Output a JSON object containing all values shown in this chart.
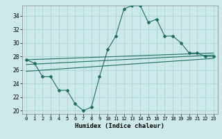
{
  "x": [
    0,
    1,
    2,
    3,
    4,
    5,
    6,
    7,
    8,
    9,
    10,
    11,
    12,
    13,
    14,
    15,
    16,
    17,
    18,
    19,
    20,
    21,
    22,
    23
  ],
  "line1": [
    27.5,
    27.0,
    25.0,
    25.0,
    23.0,
    23.0,
    21.0,
    20.0,
    20.5,
    25.0,
    29.0,
    31.0,
    35.0,
    35.5,
    35.5,
    33.0,
    33.5,
    31.0,
    31.0,
    30.0,
    28.5,
    28.5,
    28.0,
    28.0
  ],
  "line2": [
    27.5,
    28.5
  ],
  "line3": [
    26.8,
    28.2
  ],
  "line4": [
    25.8,
    27.7
  ],
  "color": "#1e6e62",
  "bg_color": "#cce8e8",
  "grid_color": "#aad4d4",
  "xlabel": "Humidex (Indice chaleur)",
  "xlim": [
    -0.5,
    23.5
  ],
  "ylim": [
    19.5,
    35.5
  ],
  "yticks": [
    20,
    22,
    24,
    26,
    28,
    30,
    32,
    34
  ],
  "xticks": [
    0,
    1,
    2,
    3,
    4,
    5,
    6,
    7,
    8,
    9,
    10,
    11,
    12,
    13,
    14,
    15,
    16,
    17,
    18,
    19,
    20,
    21,
    22,
    23
  ]
}
